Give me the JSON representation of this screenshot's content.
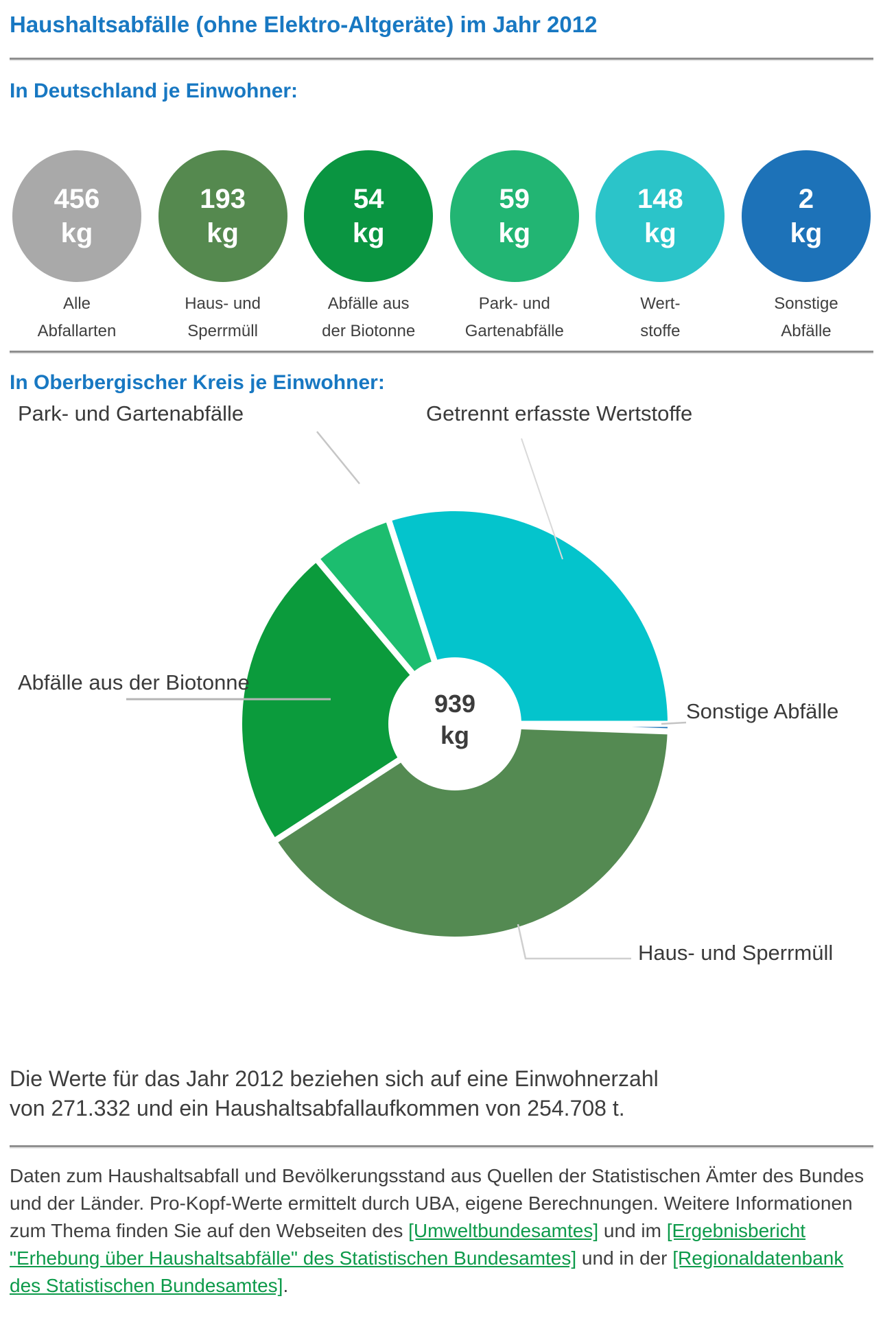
{
  "page": {
    "title": "Haushaltsabfälle (ohne Elektro-Altgeräte) im Jahr 2012",
    "germany": {
      "heading": "In Deutschland je Einwohner:",
      "circles": [
        {
          "value": "456",
          "unit": "kg",
          "label1": "Alle",
          "label2": "Abfallarten",
          "color": "#a9a9a9"
        },
        {
          "value": "193",
          "unit": "kg",
          "label1": "Haus- und",
          "label2": "Sperrmüll",
          "color": "#55894f"
        },
        {
          "value": "54",
          "unit": "kg",
          "label1": "Abfälle aus",
          "label2": "der Biotonne",
          "color": "#0a9541"
        },
        {
          "value": "59",
          "unit": "kg",
          "label1": "Park- und",
          "label2": "Gartenabfälle",
          "color": "#22b573"
        },
        {
          "value": "148",
          "unit": "kg",
          "label1": "Wert-",
          "label2": "stoffe",
          "color": "#2bc4c9"
        },
        {
          "value": "2",
          "unit": "kg",
          "label1": "Sonstige",
          "label2": "Abfälle",
          "color": "#1d72b8"
        }
      ]
    },
    "kreis": {
      "heading": "In Oberbergischer Kreis je Einwohner:"
    },
    "summary": "Die Werte für das Jahr 2012 beziehen sich auf eine Einwohnerzahl\nvon 271.332 und ein Haushaltsabfallaufkommen von 254.708 t.",
    "footer": {
      "segments": [
        {
          "link": false,
          "text": "Daten zum Haushaltsabfall und Bevölkerungsstand aus Quellen der Statistischen Ämter des Bundes und der Länder. Pro-Kopf-Werte ermittelt durch UBA, eigene Berechnungen. Weitere Informationen zum Thema finden Sie auf den Webseiten des "
        },
        {
          "link": true,
          "text": "[Umweltbundesamtes]"
        },
        {
          "link": false,
          "text": " und im "
        },
        {
          "link": true,
          "text": "[Ergebnisbericht \"Erhebung über Haushaltsabfälle\" des Statistischen Bundesamtes]"
        },
        {
          "link": false,
          "text": " und in der "
        },
        {
          "link": true,
          "text": "[Regionaldatenbank des Statistischen Bundesamtes]"
        },
        {
          "link": false,
          "text": "."
        }
      ]
    }
  },
  "chart_data": {
    "type": "pie",
    "title": "In Oberbergischer Kreis je Einwohner",
    "center_label": {
      "value": "939",
      "unit": "kg"
    },
    "total_kg": 939,
    "slices": [
      {
        "label": "Getrennt erfasste Wertstoffe",
        "color": "#04c4cc",
        "start_deg": 342,
        "end_deg": 450,
        "value_kg_est": 282
      },
      {
        "label": "Sonstige Abfälle",
        "color": "#1d72b8",
        "start_deg": 90,
        "end_deg": 92,
        "value_kg_est": 5
      },
      {
        "label": "Haus- und Sperrmüll",
        "color": "#548a52",
        "start_deg": 92,
        "end_deg": 237,
        "value_kg_est": 378
      },
      {
        "label": "Abfälle aus der Biotonne",
        "color": "#0b9b3c",
        "start_deg": 237,
        "end_deg": 320,
        "value_kg_est": 217
      },
      {
        "label": "Park- und Gartenabfälle",
        "color": "#1cbd6f",
        "start_deg": 320,
        "end_deg": 342,
        "value_kg_est": 57
      }
    ],
    "legend_position": "outside-labels",
    "donut_hole": true
  }
}
